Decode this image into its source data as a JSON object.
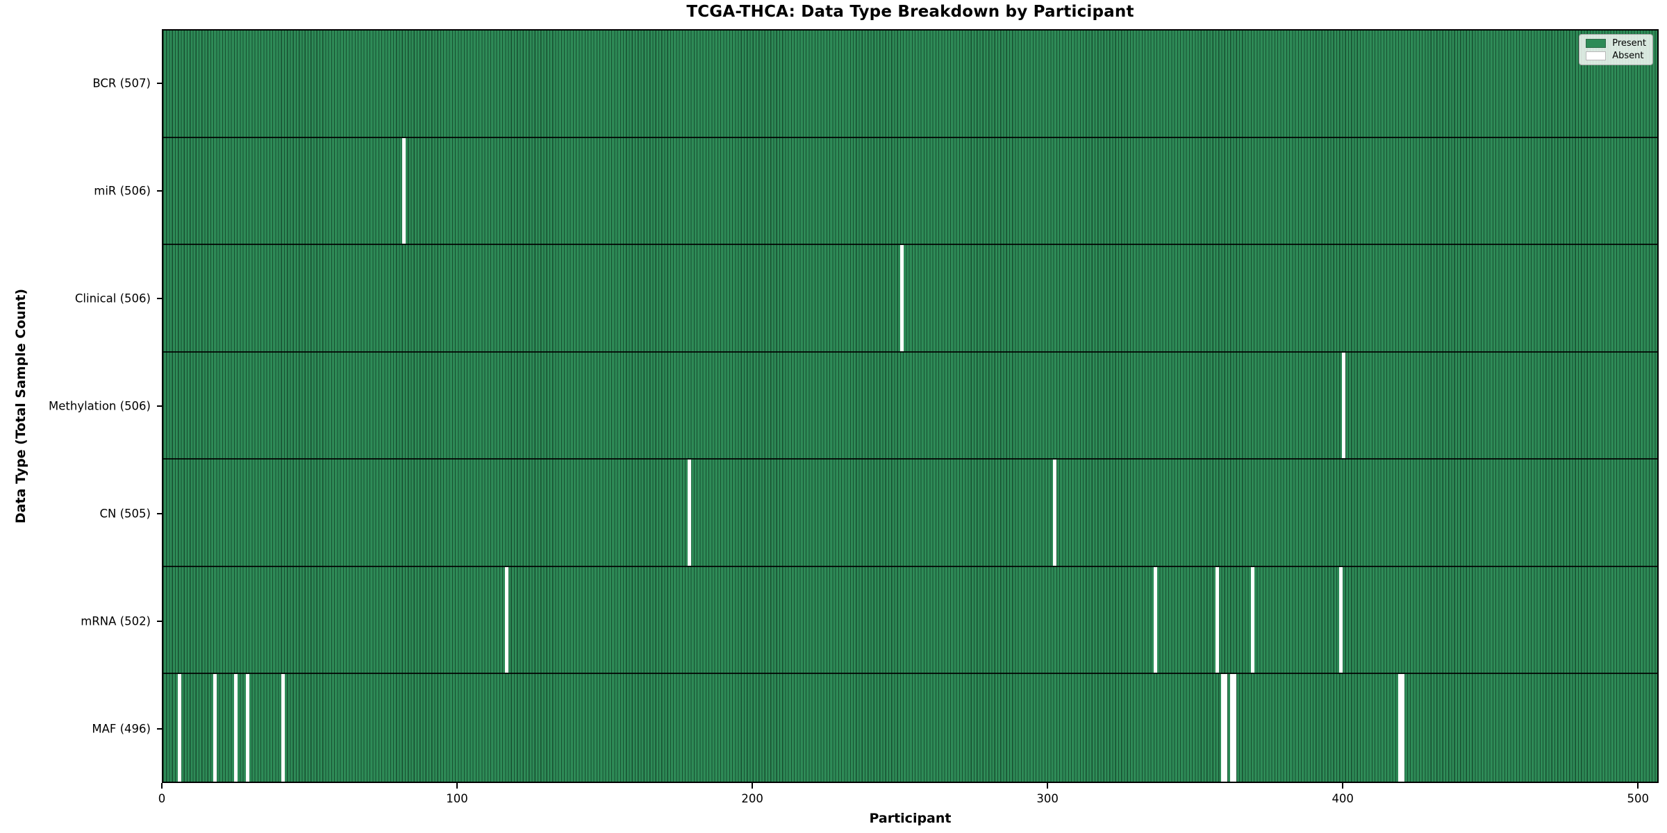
{
  "chart_data": {
    "type": "heatmap",
    "title": "TCGA-THCA: Data Type Breakdown by Participant",
    "xlabel": "Participant",
    "ylabel": "Data Type (Total Sample Count)",
    "x_ticks": [
      0,
      100,
      200,
      300,
      400,
      500
    ],
    "xlim": [
      0,
      507
    ],
    "total_participants": 507,
    "grid": false,
    "legend_position": "upper right",
    "legend": [
      {
        "label": "Present",
        "color": "#2e8b57"
      },
      {
        "label": "Absent",
        "color": "#ffffff"
      }
    ],
    "colors": {
      "present": "#2e8b57",
      "absent": "#ffffff",
      "edge": "rgba(0,20,10,0.5)"
    },
    "rows": [
      {
        "data_type": "BCR",
        "label": "BCR (507)",
        "present_count": 507,
        "absent_participants": []
      },
      {
        "data_type": "miR",
        "label": "miR (506)",
        "present_count": 506,
        "absent_participants": [
          81
        ]
      },
      {
        "data_type": "Clinical",
        "label": "Clinical (506)",
        "present_count": 506,
        "absent_participants": [
          250
        ]
      },
      {
        "data_type": "Methylation",
        "label": "Methylation (506)",
        "present_count": 506,
        "absent_participants": [
          400
        ]
      },
      {
        "data_type": "CN",
        "label": "CN (505)",
        "present_count": 505,
        "absent_participants": [
          178,
          302
        ]
      },
      {
        "data_type": "mRNA",
        "label": "mRNA (502)",
        "present_count": 502,
        "absent_participants": [
          116,
          336,
          357,
          369,
          399
        ]
      },
      {
        "data_type": "MAF",
        "label": "MAF (496)",
        "present_count": 496,
        "absent_participants": [
          5,
          17,
          24,
          28,
          40,
          359,
          360,
          362,
          363,
          419,
          420
        ]
      }
    ]
  }
}
